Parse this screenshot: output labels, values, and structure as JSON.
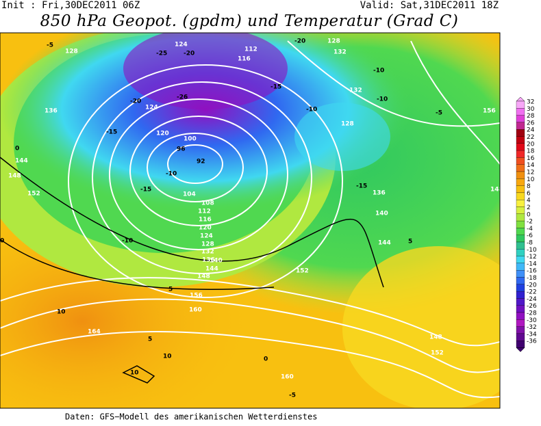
{
  "header": {
    "init": "Init : Fri,30DEC2011 06Z",
    "valid": "Valid: Sat,31DEC2011 18Z",
    "title": "850 hPa Geopot. (gpdm) und Temperatur (Grad C)"
  },
  "legend": {
    "labels": [
      32,
      30,
      28,
      26,
      24,
      22,
      20,
      18,
      16,
      14,
      12,
      10,
      8,
      6,
      4,
      2,
      0,
      -2,
      -4,
      -6,
      -8,
      -10,
      -12,
      -14,
      -16,
      -18,
      -20,
      -22,
      -24,
      -26,
      -28,
      -30,
      -32,
      -34,
      -36
    ],
    "colors": [
      "#f8a8f8",
      "#f070f0",
      "#e040d8",
      "#c02890",
      "#a00010",
      "#c00010",
      "#e00818",
      "#f02828",
      "#f05020",
      "#f07018",
      "#f09010",
      "#f8a810",
      "#f8c010",
      "#f8d820",
      "#f8f040",
      "#d8f040",
      "#b0e840",
      "#80e040",
      "#50d850",
      "#30c860",
      "#30c090",
      "#30d0c0",
      "#40d8f0",
      "#40b8f8",
      "#4090f8",
      "#3068f0",
      "#2040e0",
      "#3020d0",
      "#5018c8",
      "#7010c0",
      "#9010c0",
      "#b018c0",
      "#8010a8",
      "#600890",
      "#400070"
    ]
  },
  "contour_labels": [
    "128",
    "124",
    "-25",
    "-20",
    "-26",
    "112",
    "116",
    "-20",
    "128",
    "132",
    "-5",
    "-10",
    "132",
    "-10",
    "-20",
    "124",
    "-15",
    "-10",
    "-5",
    "128",
    "136",
    "156",
    "-15",
    "120",
    "96",
    "100",
    "92",
    "-10",
    "-15",
    "0",
    "144",
    "148",
    "152",
    "-10",
    "-15",
    "136",
    "148",
    "104",
    "108",
    "112",
    "116",
    "120",
    "124",
    "128",
    "132",
    "136",
    "140",
    "144",
    "148",
    "152",
    "156",
    "160",
    "164",
    "140",
    "144",
    "148",
    "152",
    "160",
    "0",
    "5",
    "10",
    "10",
    "10",
    "5",
    "5",
    "0",
    "-5"
  ],
  "footer": "Daten: GFS−Modell des amerikanischen Wetterdienstes"
}
